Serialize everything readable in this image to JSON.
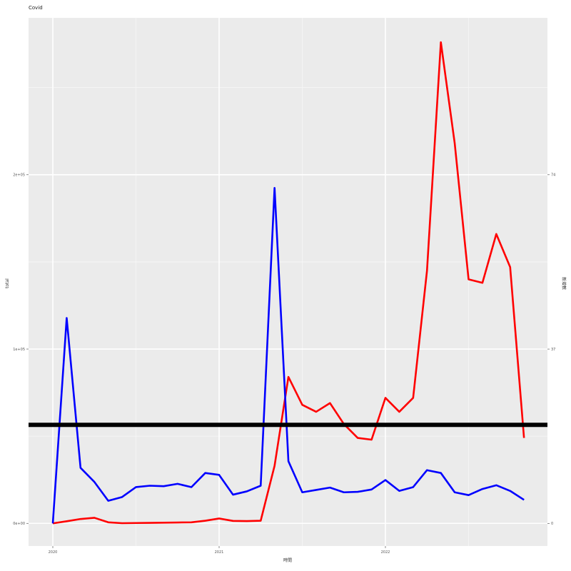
{
  "chart_data": {
    "type": "line",
    "title": "Covid",
    "xlabel": "時間",
    "ylabel_left": "total",
    "ylabel_right": "新增數",
    "x": [
      "2020-01",
      "2020-02",
      "2020-03",
      "2020-04",
      "2020-05",
      "2020-06",
      "2020-07",
      "2020-08",
      "2020-09",
      "2020-10",
      "2020-11",
      "2020-12",
      "2021-01",
      "2021-02",
      "2021-03",
      "2021-04",
      "2021-05",
      "2021-06",
      "2021-07",
      "2021-08",
      "2021-09",
      "2021-10",
      "2021-11",
      "2021-12",
      "2022-01",
      "2022-02",
      "2022-03",
      "2022-04",
      "2022-05",
      "2022-06",
      "2022-07",
      "2022-08",
      "2022-09",
      "2022-10",
      "2022-11"
    ],
    "x_ticks": [
      {
        "date": "2020-01",
        "label": "2020"
      },
      {
        "date": "2021-01",
        "label": "2021"
      },
      {
        "date": "2022-01",
        "label": "2022"
      }
    ],
    "y_left": {
      "ticks": [
        {
          "value": 0,
          "label": "0e+00"
        },
        {
          "value": 100000,
          "label": "1e+05"
        },
        {
          "value": 200000,
          "label": "2e+05"
        }
      ],
      "lim": [
        -13000,
        290000
      ]
    },
    "y_right": {
      "ticks": [
        {
          "value": 0,
          "label": "0"
        },
        {
          "value": 37,
          "label": "37"
        },
        {
          "value": 74,
          "label": "74"
        }
      ],
      "lim": [
        -4.8,
        107.3
      ]
    },
    "series": [
      {
        "name": "",
        "color": "#ff0000",
        "axis": "left",
        "values": [
          0,
          1200,
          2500,
          3200,
          600,
          100,
          200,
          300,
          400,
          500,
          600,
          1500,
          2800,
          1400,
          1300,
          1500,
          33000,
          84000,
          68000,
          64000,
          69000,
          57000,
          49000,
          48000,
          72000,
          64000,
          72000,
          145000,
          276000,
          218000,
          140000,
          138000,
          166000,
          147000,
          49000
        ]
      },
      {
        "name": "",
        "color": "#0000ff",
        "axis": "right",
        "values": [
          0,
          43.6,
          11.8,
          8.8,
          4.8,
          5.6,
          7.7,
          8,
          7.9,
          8.4,
          7.7,
          10.7,
          10.3,
          6.1,
          6.8,
          8,
          71.2,
          13.2,
          6.6,
          7.1,
          7.6,
          6.6,
          6.7,
          7.2,
          9.2,
          6.9,
          7.7,
          11.3,
          10.7,
          6.6,
          6,
          7.3,
          8.1,
          6.9,
          5
        ]
      },
      {
        "name": "",
        "color": "#000000",
        "axis": "left",
        "type": "hline",
        "value": 56500
      }
    ]
  }
}
